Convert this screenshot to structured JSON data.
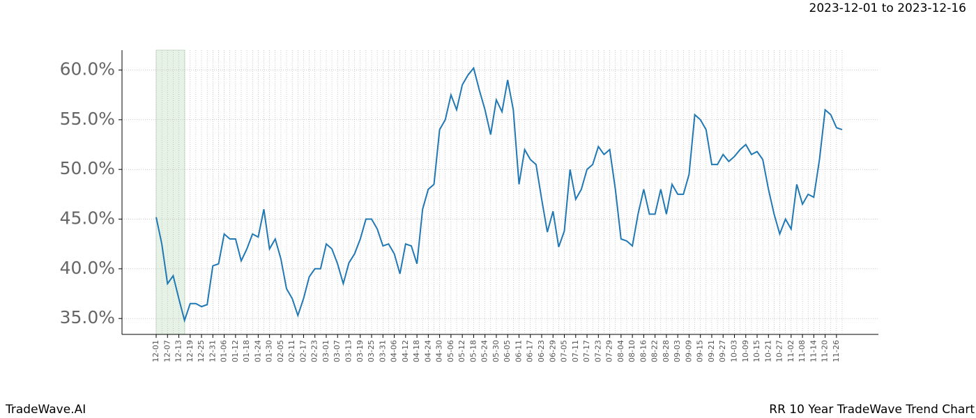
{
  "header": {
    "date_range": "2023-12-01 to 2023-12-16"
  },
  "footer": {
    "brand": "TradeWave.AI",
    "title": "RR 10 Year TradeWave Trend Chart"
  },
  "chart_data": {
    "type": "line",
    "color": "#1f77b4",
    "grid": true,
    "categories": [
      "12-01",
      null,
      "12-07",
      null,
      "12-13",
      null,
      "12-19",
      null,
      "12-25",
      null,
      "12-31",
      null,
      "01-06",
      null,
      "01-12",
      null,
      "01-18",
      null,
      "01-24",
      null,
      "01-30",
      null,
      "02-05",
      null,
      "02-11",
      null,
      "02-17",
      null,
      "02-23",
      null,
      "03-01",
      null,
      "03-07",
      null,
      "03-13",
      null,
      "03-19",
      null,
      "03-25",
      null,
      "03-31",
      null,
      "04-06",
      null,
      "04-12",
      null,
      "04-18",
      null,
      "04-24",
      null,
      "04-30",
      null,
      "05-06",
      null,
      "05-12",
      null,
      "05-18",
      null,
      "05-24",
      null,
      "05-30",
      null,
      "06-05",
      null,
      "06-11",
      null,
      "06-17",
      null,
      "06-23",
      null,
      "06-29",
      null,
      "07-05",
      null,
      "07-11",
      null,
      "07-17",
      null,
      "07-23",
      null,
      "07-29",
      null,
      "08-04",
      null,
      "08-10",
      null,
      "08-16",
      null,
      "08-22",
      null,
      "08-28",
      null,
      "09-03",
      null,
      "09-09",
      null,
      "09-15",
      null,
      "09-21",
      null,
      "09-27",
      null,
      "10-03",
      null,
      "10-09",
      null,
      "10-15",
      null,
      "10-21",
      null,
      "10-27",
      null,
      "11-02",
      null,
      "11-08",
      null,
      "11-14",
      null,
      "11-20",
      null,
      "11-26",
      null
    ],
    "values": [
      45.2,
      42.5,
      38.5,
      39.3,
      37,
      34.8,
      36.5,
      36.5,
      36.2,
      36.4,
      40.3,
      40.5,
      43.5,
      43,
      43,
      40.8,
      42,
      43.5,
      43.2,
      46,
      42,
      43,
      41,
      38,
      37,
      35.3,
      37,
      39.2,
      40,
      40,
      42.5,
      42,
      40.5,
      38.5,
      40.6,
      41.5,
      43,
      45,
      45,
      44,
      42.3,
      42.5,
      41.5,
      39.5,
      42.5,
      42.3,
      40.5,
      46,
      48,
      48.5,
      54,
      55,
      57.5,
      56,
      58.5,
      59.5,
      60.2,
      58,
      56,
      53.5,
      57,
      55.8,
      59,
      56,
      48.5,
      52,
      51,
      50.5,
      47,
      43.7,
      45.8,
      42.2,
      43.8,
      50,
      47,
      48,
      50,
      50.5,
      52.3,
      51.5,
      52,
      48,
      43,
      42.8,
      42.3,
      45.5,
      48,
      45.5,
      45.5,
      48,
      45.5,
      48.5,
      47.5,
      47.5,
      49.5,
      55.5,
      55,
      54,
      50.5,
      50.5,
      51.5,
      50.8,
      51.3,
      52,
      52.5,
      51.5,
      51.8,
      51,
      48,
      45.5,
      43.5,
      45,
      44,
      48.5,
      46.5,
      47.5,
      47.2,
      51,
      56,
      55.5,
      54.2,
      54
    ],
    "ylim": [
      33.4,
      62
    ],
    "yticks": [
      {
        "value": 35,
        "label": "35.0%"
      },
      {
        "value": 40,
        "label": "40.0%"
      },
      {
        "value": 45,
        "label": "45.0%"
      },
      {
        "value": 50,
        "label": "50.0%"
      },
      {
        "value": 55,
        "label": "55.0%"
      },
      {
        "value": 60,
        "label": "60.0%"
      }
    ]
  }
}
